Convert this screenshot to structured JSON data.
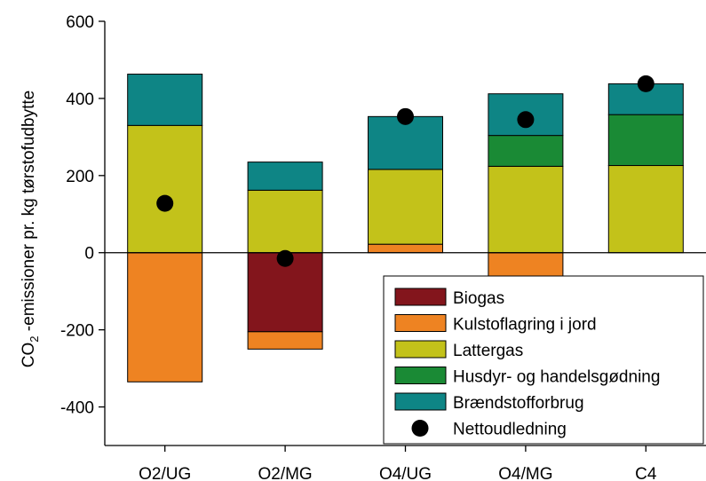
{
  "chart_data": {
    "type": "bar",
    "stacked": true,
    "title": "",
    "xlabel": "",
    "ylabel": {
      "prefix": "CO",
      "subscript": "2",
      "suffix": " -emissioner pr. kg tørstofudbytte"
    },
    "ylim": [
      -500,
      600
    ],
    "yticks": [
      -400,
      -200,
      0,
      200,
      400,
      600
    ],
    "categories": [
      "O2/UG",
      "O2/MG",
      "O4/UG",
      "O4/MG",
      "C4"
    ],
    "series": [
      {
        "name": "Biogas",
        "color": "#83151c",
        "values": [
          0,
          -205,
          0,
          0,
          0
        ]
      },
      {
        "name": "Kulstoflagring i jord",
        "color": "#ee8322",
        "values": [
          -335,
          -45,
          22,
          -65,
          0
        ]
      },
      {
        "name": "Lattergas",
        "color": "#c3c21a",
        "values": [
          330,
          162,
          194,
          224,
          226
        ]
      },
      {
        "name": "Husdyr- og handelsgødning",
        "color": "#1a8a35",
        "values": [
          0,
          0,
          0,
          80,
          132
        ]
      },
      {
        "name": "Brændstofforbrug",
        "color": "#0e8585",
        "values": [
          133,
          73,
          137,
          108,
          80
        ]
      }
    ],
    "points": {
      "name": "Nettoudledning",
      "color": "#000000",
      "values": [
        128,
        -15,
        353,
        345,
        438
      ]
    },
    "legend_position": "bottom-right",
    "grid": false
  }
}
